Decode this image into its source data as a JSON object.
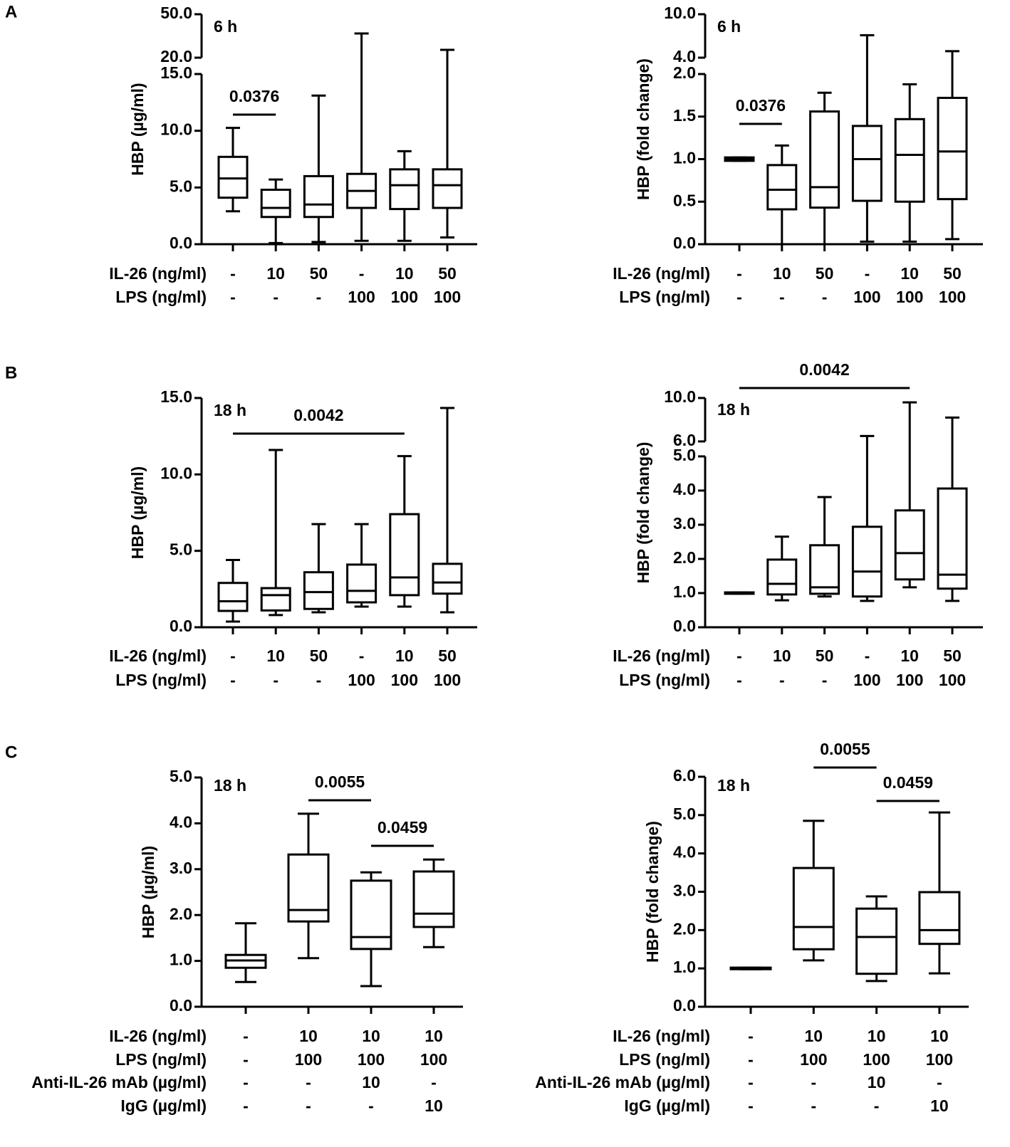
{
  "chart_data": [
    {
      "type": "box",
      "panel": "A",
      "annotation": "6 h",
      "ylabel": "HBP (µg/ml)",
      "color": "#000000",
      "y_segments": [
        {
          "ylim": [
            0,
            15
          ],
          "yticks": [
            {
              "value": 0,
              "label": "0.0"
            },
            {
              "value": 5,
              "label": "5.0"
            },
            {
              "value": 10,
              "label": "10.0"
            },
            {
              "value": 15,
              "label": "15.0"
            }
          ]
        },
        {
          "ylim": [
            20,
            50
          ],
          "yticks": [
            {
              "value": 20,
              "label": "20.0"
            },
            {
              "value": 50,
              "label": "50.0"
            }
          ]
        }
      ],
      "conditions": [
        {
          "label": "IL-26 (ng/ml)",
          "values": [
            "-",
            "10",
            "50",
            "-",
            "10",
            "50"
          ]
        },
        {
          "label": "LPS (ng/ml)",
          "values": [
            "-",
            "-",
            "-",
            "100",
            "100",
            "100"
          ]
        }
      ],
      "min": [
        2.9,
        0.1,
        0.2,
        0.3,
        0.3,
        0.6
      ],
      "q1": [
        4.1,
        2.4,
        2.4,
        3.2,
        3.1,
        3.2
      ],
      "median": [
        5.8,
        3.2,
        3.5,
        4.7,
        5.2,
        5.2
      ],
      "q3": [
        7.7,
        4.8,
        6.0,
        6.2,
        6.6,
        6.6
      ],
      "max": [
        10.25,
        5.7,
        13.1,
        36.7,
        8.2,
        25.4
      ],
      "comparisons": [
        {
          "from": 0,
          "to": 1,
          "label": "0.0376"
        }
      ]
    },
    {
      "type": "box",
      "annotation": "6 h",
      "ylabel": "HBP (fold change)",
      "color": "#000000",
      "y_segments": [
        {
          "ylim": [
            0,
            2
          ],
          "yticks": [
            {
              "value": 0,
              "label": "0.0"
            },
            0.5,
            {
              "value": 1,
              "label": "1.0"
            },
            1.5,
            {
              "value": 2,
              "label": "2.0"
            }
          ]
        },
        {
          "ylim": [
            4,
            10
          ],
          "yticks": [
            {
              "value": 4,
              "label": "4.0"
            },
            {
              "value": 10,
              "label": "10.0"
            }
          ]
        }
      ],
      "conditions": [
        {
          "label": "IL-26 (ng/ml)",
          "values": [
            "-",
            "10",
            "50",
            "-",
            "10",
            "50"
          ]
        },
        {
          "label": "LPS (ng/ml)",
          "values": [
            "-",
            "-",
            "-",
            "100",
            "100",
            "100"
          ]
        }
      ],
      "min": [
        0.98,
        0.0,
        0.0,
        0.03,
        0.03,
        0.06
      ],
      "q1": [
        0.98,
        0.41,
        0.43,
        0.51,
        0.5,
        0.53
      ],
      "median": [
        1.0,
        0.64,
        0.67,
        1.0,
        1.05,
        1.09
      ],
      "q3": [
        1.02,
        0.93,
        1.56,
        1.39,
        1.47,
        1.72
      ],
      "max": [
        1.02,
        1.16,
        1.78,
        7.1,
        1.88,
        4.9
      ],
      "comparisons": [
        {
          "from": 0,
          "to": 1,
          "label": "0.0376"
        }
      ]
    },
    {
      "type": "box",
      "panel": "B",
      "annotation": "18 h",
      "ylabel": "HBP (µg/ml)",
      "color": "#000000",
      "y_segments": [
        {
          "ylim": [
            0,
            15
          ],
          "yticks": [
            {
              "value": 0,
              "label": "0.0"
            },
            {
              "value": 5,
              "label": "5.0"
            },
            {
              "value": 10,
              "label": "10.0"
            },
            {
              "value": 15,
              "label": "15.0"
            }
          ]
        }
      ],
      "conditions": [
        {
          "label": "IL-26 (ng/ml)",
          "values": [
            "-",
            "10",
            "50",
            "-",
            "10",
            "50"
          ]
        },
        {
          "label": "LPS (ng/ml)",
          "values": [
            "-",
            "-",
            "-",
            "100",
            "100",
            "100"
          ]
        }
      ],
      "min": [
        0.37,
        0.8,
        0.98,
        1.35,
        1.35,
        0.98
      ],
      "q1": [
        1.07,
        1.1,
        1.2,
        1.63,
        2.1,
        2.2
      ],
      "median": [
        1.7,
        2.1,
        2.3,
        2.38,
        3.26,
        2.93
      ],
      "q3": [
        2.9,
        2.56,
        3.6,
        4.1,
        7.4,
        4.15
      ],
      "max": [
        4.4,
        11.6,
        6.75,
        6.75,
        11.2,
        14.35
      ],
      "comparisons": [
        {
          "from": 0,
          "to": 4,
          "label": "0.0042"
        }
      ]
    },
    {
      "type": "box",
      "annotation": "18 h",
      "ylabel": "HBP (fold change)",
      "color": "#000000",
      "y_segments": [
        {
          "ylim": [
            0,
            5
          ],
          "yticks": [
            {
              "value": 0,
              "label": "0.0"
            },
            {
              "value": 1,
              "label": "1.0"
            },
            {
              "value": 2,
              "label": "2.0"
            },
            {
              "value": 3,
              "label": "3.0"
            },
            {
              "value": 4,
              "label": "4.0"
            },
            {
              "value": 5,
              "label": "5.0"
            }
          ]
        },
        {
          "ylim": [
            6,
            10
          ],
          "yticks": [
            {
              "value": 6,
              "label": "6.0"
            },
            {
              "value": 10,
              "label": "10.0"
            }
          ]
        }
      ],
      "conditions": [
        {
          "label": "IL-26 (ng/ml)",
          "values": [
            "-",
            "10",
            "50",
            "-",
            "10",
            "50"
          ]
        },
        {
          "label": "LPS (ng/ml)",
          "values": [
            "-",
            "-",
            "-",
            "100",
            "100",
            "100"
          ]
        }
      ],
      "min": [
        0.98,
        0.79,
        0.9,
        0.77,
        1.17,
        0.77
      ],
      "q1": [
        0.98,
        0.96,
        0.98,
        0.9,
        1.4,
        1.13
      ],
      "median": [
        1.0,
        1.27,
        1.17,
        1.63,
        2.17,
        1.54
      ],
      "q3": [
        1.02,
        1.98,
        2.4,
        2.94,
        3.42,
        4.06
      ],
      "max": [
        1.02,
        2.65,
        3.81,
        6.5,
        9.6,
        8.2
      ],
      "comparisons": [
        {
          "from": 0,
          "to": 4,
          "label": "0.0042"
        }
      ]
    },
    {
      "type": "box",
      "panel": "C",
      "annotation": "18 h",
      "ylabel": "HBP (µg/ml)",
      "color": "#000000",
      "y_segments": [
        {
          "ylim": [
            0,
            5
          ],
          "yticks": [
            {
              "value": 0,
              "label": "0.0"
            },
            {
              "value": 1,
              "label": "1.0"
            },
            {
              "value": 2,
              "label": "2.0"
            },
            {
              "value": 3,
              "label": "3.0"
            },
            {
              "value": 4,
              "label": "4.0"
            },
            {
              "value": 5,
              "label": "5.0"
            }
          ]
        }
      ],
      "conditions": [
        {
          "label": "IL-26 (ng/ml)",
          "values": [
            "-",
            "10",
            "10",
            "10"
          ]
        },
        {
          "label": "LPS (ng/ml)",
          "values": [
            "-",
            "100",
            "100",
            "100"
          ]
        },
        {
          "label": "Anti-IL-26 mAb (µg/ml)",
          "values": [
            "-",
            "-",
            "10",
            "-"
          ]
        },
        {
          "label": "IgG (µg/ml)",
          "values": [
            "-",
            "-",
            "-",
            "10"
          ]
        }
      ],
      "min": [
        0.54,
        1.06,
        0.45,
        1.3
      ],
      "q1": [
        0.85,
        1.86,
        1.26,
        1.74
      ],
      "median": [
        1.01,
        2.11,
        1.52,
        2.03
      ],
      "q3": [
        1.13,
        3.32,
        2.75,
        2.95
      ],
      "max": [
        1.82,
        4.21,
        2.93,
        3.21
      ],
      "comparisons": [
        {
          "from": 1,
          "to": 2,
          "label": "0.0055"
        },
        {
          "from": 2,
          "to": 3,
          "label": "0.0459"
        }
      ]
    },
    {
      "type": "box",
      "annotation": "18 h",
      "ylabel": "HBP (fold change)",
      "color": "#000000",
      "y_segments": [
        {
          "ylim": [
            0,
            6
          ],
          "yticks": [
            {
              "value": 0,
              "label": "0.0"
            },
            {
              "value": 1,
              "label": "1.0"
            },
            {
              "value": 2,
              "label": "2.0"
            },
            {
              "value": 3,
              "label": "3.0"
            },
            {
              "value": 4,
              "label": "4.0"
            },
            {
              "value": 5,
              "label": "5.0"
            },
            {
              "value": 6,
              "label": "6.0"
            }
          ]
        }
      ],
      "conditions": [
        {
          "label": "IL-26 (ng/ml)",
          "values": [
            "-",
            "10",
            "10",
            "10"
          ]
        },
        {
          "label": "LPS (ng/ml)",
          "values": [
            "-",
            "100",
            "100",
            "100"
          ]
        },
        {
          "label": "Anti-IL-26 mAb (µg/ml)",
          "values": [
            "-",
            "-",
            "10",
            "-"
          ]
        },
        {
          "label": "IgG (µg/ml)",
          "values": [
            "-",
            "-",
            "-",
            "10"
          ]
        }
      ],
      "min": [
        0.98,
        1.21,
        0.67,
        0.87
      ],
      "q1": [
        0.98,
        1.5,
        0.86,
        1.64
      ],
      "median": [
        1.0,
        2.08,
        1.82,
        2.0
      ],
      "q3": [
        1.02,
        3.62,
        2.56,
        2.99
      ],
      "max": [
        1.02,
        4.85,
        2.88,
        5.07
      ],
      "comparisons": [
        {
          "from": 1,
          "to": 2,
          "label": "0.0055"
        },
        {
          "from": 2,
          "to": 3,
          "label": "0.0459"
        }
      ]
    }
  ]
}
